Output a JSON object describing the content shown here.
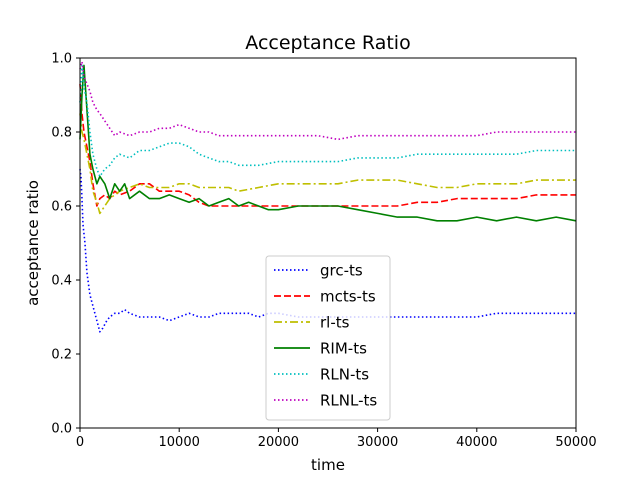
{
  "chart_data": {
    "type": "line",
    "title": "Acceptance Ratio",
    "xlabel": "time",
    "ylabel": "acceptance ratio",
    "xlim": [
      0,
      50000
    ],
    "ylim": [
      0.0,
      1.0
    ],
    "xticks": [
      0,
      10000,
      20000,
      30000,
      40000,
      50000
    ],
    "xtick_labels": [
      "0",
      "10000",
      "20000",
      "30000",
      "40000",
      "50000"
    ],
    "yticks": [
      0.0,
      0.2,
      0.4,
      0.6,
      0.8,
      1.0
    ],
    "ytick_labels": [
      "0.0",
      "0.2",
      "0.4",
      "0.6",
      "0.8",
      "1.0"
    ],
    "grid": false,
    "legend_position": "lower-center",
    "series": [
      {
        "name": "grc-ts",
        "color": "#0000ff",
        "dash": "dotted",
        "x": [
          0,
          100,
          200,
          300,
          500,
          700,
          1000,
          1300,
          1700,
          2000,
          2300,
          2700,
          3000,
          3500,
          4000,
          4500,
          5000,
          6000,
          7000,
          8000,
          9000,
          10000,
          11000,
          12000,
          13000,
          14000,
          15000,
          16000,
          17000,
          18000,
          19000,
          20000,
          22000,
          24000,
          26000,
          28000,
          30000,
          32000,
          34000,
          36000,
          38000,
          40000,
          42000,
          44000,
          46000,
          48000,
          50000
        ],
        "y": [
          0.7,
          0.68,
          0.62,
          0.55,
          0.5,
          0.42,
          0.36,
          0.33,
          0.29,
          0.26,
          0.27,
          0.29,
          0.3,
          0.31,
          0.31,
          0.32,
          0.31,
          0.3,
          0.3,
          0.3,
          0.29,
          0.3,
          0.31,
          0.3,
          0.3,
          0.31,
          0.31,
          0.31,
          0.31,
          0.3,
          0.31,
          0.31,
          0.3,
          0.3,
          0.3,
          0.3,
          0.3,
          0.3,
          0.3,
          0.3,
          0.3,
          0.3,
          0.31,
          0.31,
          0.31,
          0.31,
          0.31
        ]
      },
      {
        "name": "mcts-ts",
        "color": "#ff0000",
        "dash": "dashed",
        "x": [
          0,
          200,
          400,
          700,
          1000,
          1300,
          1700,
          2000,
          2500,
          3000,
          3500,
          4000,
          5000,
          6000,
          7000,
          8000,
          9000,
          10000,
          11000,
          12000,
          13000,
          14000,
          15000,
          16000,
          18000,
          20000,
          22000,
          24000,
          26000,
          28000,
          30000,
          32000,
          34000,
          36000,
          38000,
          40000,
          42000,
          44000,
          46000,
          48000,
          50000
        ],
        "y": [
          0.93,
          0.85,
          0.8,
          0.76,
          0.72,
          0.66,
          0.6,
          0.62,
          0.63,
          0.62,
          0.64,
          0.63,
          0.64,
          0.66,
          0.66,
          0.64,
          0.64,
          0.64,
          0.63,
          0.61,
          0.6,
          0.6,
          0.6,
          0.6,
          0.6,
          0.6,
          0.6,
          0.6,
          0.6,
          0.6,
          0.6,
          0.6,
          0.61,
          0.61,
          0.62,
          0.62,
          0.62,
          0.62,
          0.63,
          0.63,
          0.63
        ]
      },
      {
        "name": "rl-ts",
        "color": "#bfbf00",
        "dash": "dashdot",
        "x": [
          0,
          200,
          400,
          700,
          1000,
          1300,
          1700,
          2000,
          2500,
          3000,
          3500,
          4000,
          5000,
          6000,
          7000,
          8000,
          9000,
          10000,
          11000,
          12000,
          13000,
          14000,
          15000,
          16000,
          18000,
          20000,
          22000,
          24000,
          26000,
          28000,
          30000,
          32000,
          34000,
          36000,
          38000,
          40000,
          42000,
          44000,
          46000,
          48000,
          50000
        ],
        "y": [
          0.85,
          0.8,
          0.78,
          0.74,
          0.7,
          0.64,
          0.61,
          0.58,
          0.6,
          0.62,
          0.63,
          0.64,
          0.65,
          0.66,
          0.65,
          0.65,
          0.65,
          0.66,
          0.66,
          0.65,
          0.65,
          0.65,
          0.65,
          0.64,
          0.65,
          0.66,
          0.66,
          0.66,
          0.66,
          0.67,
          0.67,
          0.67,
          0.66,
          0.65,
          0.65,
          0.66,
          0.66,
          0.66,
          0.67,
          0.67,
          0.67
        ]
      },
      {
        "name": "RIM-ts",
        "color": "#008000",
        "dash": "solid",
        "x": [
          0,
          200,
          400,
          600,
          800,
          1000,
          1300,
          1700,
          2000,
          2500,
          3000,
          3500,
          4000,
          4500,
          5000,
          6000,
          7000,
          8000,
          9000,
          10000,
          11000,
          12000,
          13000,
          14000,
          15000,
          16000,
          17000,
          18000,
          19000,
          20000,
          22000,
          24000,
          26000,
          28000,
          30000,
          32000,
          34000,
          36000,
          38000,
          40000,
          42000,
          44000,
          46000,
          48000,
          50000
        ],
        "y": [
          0.78,
          0.9,
          0.98,
          0.9,
          0.82,
          0.74,
          0.7,
          0.66,
          0.68,
          0.66,
          0.62,
          0.66,
          0.64,
          0.66,
          0.62,
          0.64,
          0.62,
          0.62,
          0.63,
          0.62,
          0.61,
          0.62,
          0.6,
          0.61,
          0.62,
          0.6,
          0.61,
          0.6,
          0.59,
          0.59,
          0.6,
          0.6,
          0.6,
          0.59,
          0.58,
          0.57,
          0.57,
          0.56,
          0.56,
          0.57,
          0.56,
          0.57,
          0.56,
          0.57,
          0.56
        ]
      },
      {
        "name": "RLN-ts",
        "color": "#00bfbf",
        "dash": "dotted",
        "x": [
          0,
          200,
          400,
          700,
          1000,
          1300,
          1700,
          2000,
          2500,
          3000,
          3500,
          4000,
          5000,
          6000,
          7000,
          8000,
          9000,
          10000,
          11000,
          12000,
          13000,
          14000,
          15000,
          16000,
          18000,
          20000,
          22000,
          24000,
          26000,
          28000,
          30000,
          32000,
          34000,
          36000,
          38000,
          40000,
          42000,
          44000,
          46000,
          48000,
          50000
        ],
        "y": [
          0.88,
          0.98,
          0.92,
          0.88,
          0.8,
          0.74,
          0.7,
          0.68,
          0.7,
          0.71,
          0.73,
          0.74,
          0.73,
          0.75,
          0.75,
          0.76,
          0.77,
          0.77,
          0.76,
          0.74,
          0.73,
          0.72,
          0.72,
          0.71,
          0.71,
          0.72,
          0.72,
          0.72,
          0.72,
          0.73,
          0.73,
          0.73,
          0.74,
          0.74,
          0.74,
          0.74,
          0.74,
          0.74,
          0.75,
          0.75,
          0.75
        ]
      },
      {
        "name": "RLNL-ts",
        "color": "#bf00bf",
        "dash": "dotted",
        "x": [
          0,
          200,
          400,
          700,
          1000,
          1300,
          1700,
          2000,
          2500,
          3000,
          3500,
          4000,
          5000,
          6000,
          7000,
          8000,
          9000,
          10000,
          11000,
          12000,
          13000,
          14000,
          15000,
          16000,
          18000,
          20000,
          22000,
          24000,
          26000,
          28000,
          30000,
          32000,
          34000,
          36000,
          38000,
          40000,
          42000,
          44000,
          46000,
          48000,
          50000
        ],
        "y": [
          0.97,
          0.99,
          0.95,
          0.93,
          0.91,
          0.88,
          0.86,
          0.85,
          0.83,
          0.81,
          0.79,
          0.8,
          0.79,
          0.8,
          0.8,
          0.81,
          0.81,
          0.82,
          0.81,
          0.8,
          0.8,
          0.79,
          0.79,
          0.79,
          0.79,
          0.79,
          0.79,
          0.79,
          0.78,
          0.79,
          0.79,
          0.79,
          0.79,
          0.79,
          0.79,
          0.79,
          0.8,
          0.8,
          0.8,
          0.8,
          0.8
        ]
      }
    ]
  }
}
